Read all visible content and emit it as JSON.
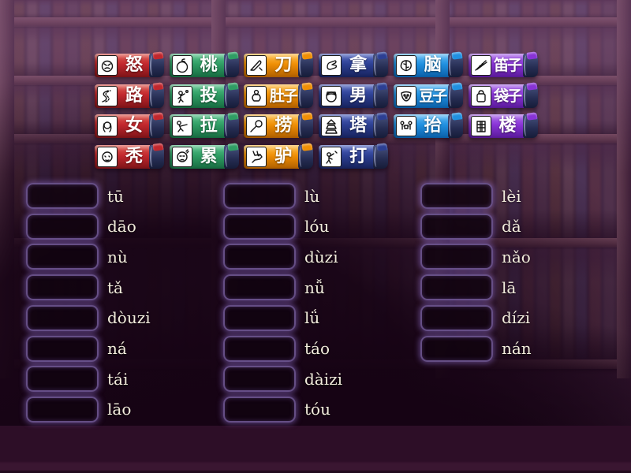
{
  "game": {
    "type_label": "match-up"
  },
  "theme": {
    "background": "#3b1f38",
    "slot_border_glow": "#9b7fd4",
    "slot_fill": "#150513",
    "pinyin_color": "#f2ecdc",
    "char_color": "#ffffff",
    "tag_colors": {
      "red": {
        "light": "#e05a50",
        "base": "#c1272d",
        "dark": "#7e1418"
      },
      "green": {
        "light": "#5cc48e",
        "base": "#2f9d64",
        "dark": "#176b41"
      },
      "orange": {
        "light": "#ffc04d",
        "base": "#ef8f05",
        "dark": "#b05f00"
      },
      "navy": {
        "light": "#5468c2",
        "base": "#2c3f93",
        "dark": "#17225c"
      },
      "blue": {
        "light": "#64bdf5",
        "base": "#2090e0",
        "dark": "#0b5fa8"
      },
      "purple": {
        "light": "#b070ee",
        "base": "#8833d6",
        "dark": "#5a1a9a"
      }
    }
  },
  "tags": [
    {
      "char": "怒",
      "color": "red",
      "icon": "angry-face-icon"
    },
    {
      "char": "桃",
      "color": "green",
      "icon": "peach-icon"
    },
    {
      "char": "刀",
      "color": "orange",
      "icon": "knife-icon"
    },
    {
      "char": "拿",
      "color": "navy",
      "icon": "hand-take-icon"
    },
    {
      "char": "脑",
      "color": "blue",
      "icon": "brain-icon"
    },
    {
      "char": "笛子",
      "color": "purple",
      "icon": "flute-icon"
    },
    {
      "char": "路",
      "color": "red",
      "icon": "road-icon"
    },
    {
      "char": "投",
      "color": "green",
      "icon": "throw-person-icon"
    },
    {
      "char": "肚子",
      "color": "orange",
      "icon": "belly-person-icon"
    },
    {
      "char": "男",
      "color": "navy",
      "icon": "man-face-icon"
    },
    {
      "char": "豆子",
      "color": "blue",
      "icon": "beans-icon"
    },
    {
      "char": "袋子",
      "color": "purple",
      "icon": "bag-icon"
    },
    {
      "char": "女",
      "color": "red",
      "icon": "woman-face-icon"
    },
    {
      "char": "拉",
      "color": "green",
      "icon": "pull-person-icon"
    },
    {
      "char": "捞",
      "color": "orange",
      "icon": "scoop-net-icon"
    },
    {
      "char": "塔",
      "color": "navy",
      "icon": "pagoda-tower-icon"
    },
    {
      "char": "抬",
      "color": "blue",
      "icon": "carry-people-icon"
    },
    {
      "char": "楼",
      "color": "purple",
      "icon": "building-icon"
    },
    {
      "char": "秃",
      "color": "red",
      "icon": "bald-head-icon"
    },
    {
      "char": "累",
      "color": "green",
      "icon": "tired-person-icon"
    },
    {
      "char": "驴",
      "color": "orange",
      "icon": "donkey-icon"
    },
    {
      "char": "打",
      "color": "navy",
      "icon": "hit-person-icon"
    }
  ],
  "columns": [
    {
      "items": [
        "tū",
        "dāo",
        "nù",
        "tǎ",
        "dòuzi",
        "ná",
        "tái",
        "lāo"
      ]
    },
    {
      "items": [
        "lù",
        "lóu",
        "dùzi",
        "nǚ",
        "lǘ",
        "táo",
        "dàizi",
        "tóu"
      ]
    },
    {
      "items": [
        "lèi",
        "dǎ",
        "nǎo",
        "lā",
        "dízi",
        "nán"
      ]
    }
  ]
}
